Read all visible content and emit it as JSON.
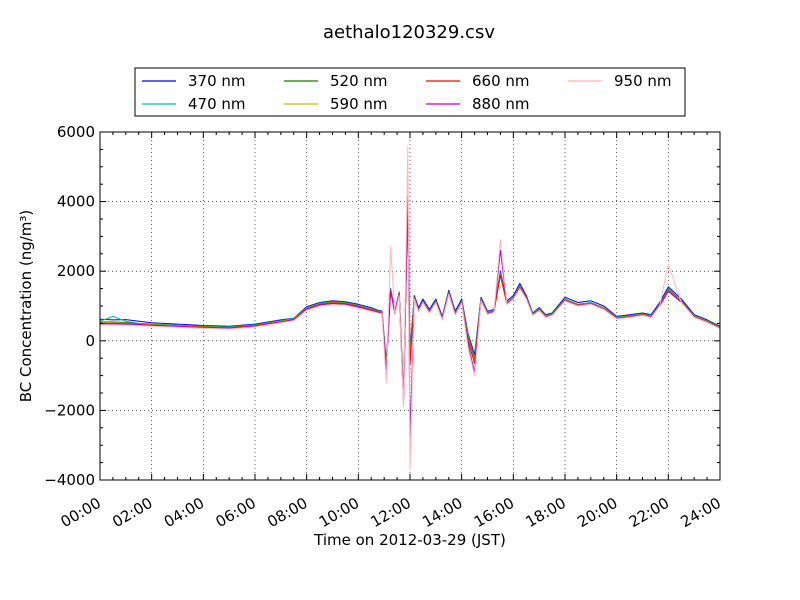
{
  "chart_data": {
    "type": "line",
    "title": "aethalo120329.csv",
    "xlabel": "Time on 2012-03-29 (JST)",
    "ylabel": "BC Concentration (ng/m³)",
    "ylim": [
      -4000,
      6000
    ],
    "xlim_hours": [
      0,
      24
    ],
    "x_tick_labels": [
      "00:00",
      "02:00",
      "04:00",
      "06:00",
      "08:00",
      "10:00",
      "12:00",
      "14:00",
      "16:00",
      "18:00",
      "20:00",
      "22:00",
      "24:00"
    ],
    "y_tick_labels": [
      "−4000",
      "−2000",
      "0",
      "2000",
      "4000",
      "6000"
    ],
    "grid": true,
    "legend_position": "top-center",
    "x": [
      "00:00",
      "00:30",
      "01:00",
      "01:30",
      "02:00",
      "03:00",
      "04:00",
      "05:00",
      "06:00",
      "07:00",
      "07:30",
      "08:00",
      "08:30",
      "09:00",
      "09:30",
      "10:00",
      "10:30",
      "10:45",
      "10:55",
      "11:05",
      "11:15",
      "11:25",
      "11:35",
      "11:45",
      "11:55",
      "12:00",
      "12:10",
      "12:20",
      "12:30",
      "12:45",
      "13:00",
      "13:15",
      "13:30",
      "13:45",
      "14:00",
      "14:15",
      "14:30",
      "14:45",
      "15:00",
      "15:15",
      "15:30",
      "15:45",
      "16:00",
      "16:15",
      "16:30",
      "16:45",
      "17:00",
      "17:15",
      "17:30",
      "18:00",
      "18:30",
      "19:00",
      "19:30",
      "20:00",
      "20:30",
      "21:00",
      "21:20",
      "21:40",
      "22:00",
      "22:30",
      "23:00",
      "23:30",
      "24:00"
    ],
    "series": [
      {
        "name": "370 nm",
        "color": "#0000ff",
        "values": [
          620,
          600,
          610,
          560,
          520,
          480,
          440,
          420,
          480,
          600,
          650,
          980,
          1100,
          1150,
          1120,
          1050,
          950,
          880,
          850,
          -600,
          1500,
          850,
          1400,
          -1500,
          3900,
          -300,
          1300,
          950,
          1200,
          900,
          1200,
          700,
          1450,
          850,
          1200,
          200,
          -400,
          1250,
          850,
          900,
          2000,
          1150,
          1300,
          1650,
          1300,
          800,
          950,
          750,
          800,
          1250,
          1100,
          1150,
          1000,
          700,
          750,
          800,
          750,
          1100,
          1550,
          1200,
          750,
          600,
          420
        ]
      },
      {
        "name": "470 nm",
        "color": "#00bfbf",
        "values": [
          560,
          700,
          560,
          500,
          480,
          450,
          420,
          400,
          460,
          580,
          640,
          950,
          1080,
          1120,
          1100,
          1020,
          920,
          860,
          830,
          -650,
          1480,
          820,
          1380,
          -1600,
          3950,
          -400,
          1250,
          900,
          1150,
          850,
          1150,
          650,
          1400,
          800,
          1150,
          150,
          -500,
          1200,
          820,
          880,
          1950,
          1100,
          1250,
          1600,
          1250,
          780,
          920,
          720,
          780,
          1200,
          1050,
          1100,
          950,
          680,
          720,
          780,
          720,
          1050,
          1500,
          1150,
          720,
          580,
          400
        ]
      },
      {
        "name": "520 nm",
        "color": "#008000",
        "values": [
          540,
          540,
          530,
          490,
          470,
          440,
          410,
          390,
          450,
          570,
          630,
          940,
          1070,
          1110,
          1090,
          1010,
          910,
          850,
          820,
          -700,
          1470,
          800,
          1370,
          -1650,
          4000,
          -500,
          1240,
          880,
          1140,
          840,
          1140,
          640,
          1380,
          780,
          1140,
          100,
          -550,
          1190,
          800,
          860,
          1920,
          1080,
          1240,
          1580,
          1240,
          770,
          910,
          710,
          770,
          1180,
          1040,
          1090,
          940,
          670,
          710,
          770,
          710,
          1040,
          1480,
          1140,
          710,
          570,
          390
        ]
      },
      {
        "name": "590 nm",
        "color": "#bfbf00",
        "values": [
          520,
          520,
          510,
          480,
          460,
          430,
          400,
          380,
          440,
          560,
          620,
          930,
          1060,
          1100,
          1080,
          1000,
          900,
          840,
          810,
          -750,
          1460,
          790,
          1360,
          -1700,
          4050,
          -600,
          1230,
          870,
          1130,
          830,
          1130,
          630,
          1370,
          770,
          1130,
          50,
          -600,
          1180,
          790,
          850,
          1900,
          1070,
          1230,
          1560,
          1230,
          760,
          900,
          700,
          760,
          1170,
          1030,
          1080,
          930,
          660,
          700,
          760,
          700,
          1030,
          1460,
          1130,
          700,
          560,
          380
        ]
      },
      {
        "name": "660 nm",
        "color": "#ff0000",
        "values": [
          500,
          500,
          490,
          470,
          450,
          420,
          390,
          370,
          430,
          550,
          610,
          920,
          1050,
          1090,
          1070,
          990,
          890,
          830,
          800,
          -800,
          1450,
          780,
          1350,
          -1750,
          4100,
          -700,
          1220,
          860,
          1120,
          820,
          1120,
          620,
          1360,
          760,
          1120,
          0,
          -650,
          1170,
          780,
          840,
          1880,
          1060,
          1220,
          1540,
          1220,
          750,
          890,
          690,
          750,
          1160,
          1020,
          1070,
          920,
          650,
          690,
          750,
          690,
          1020,
          1440,
          1120,
          690,
          550,
          370
        ]
      },
      {
        "name": "880 nm",
        "color": "#bf00bf",
        "values": [
          480,
          480,
          470,
          460,
          440,
          410,
          380,
          360,
          420,
          540,
          600,
          900,
          1030,
          1070,
          1050,
          970,
          870,
          820,
          790,
          -850,
          1440,
          770,
          1340,
          -1800,
          4150,
          -2800,
          1210,
          850,
          1110,
          810,
          1110,
          610,
          1350,
          750,
          1100,
          -100,
          -900,
          1160,
          770,
          830,
          2600,
          1050,
          1210,
          1520,
          1210,
          740,
          880,
          680,
          740,
          1150,
          1010,
          1060,
          910,
          640,
          680,
          740,
          680,
          1010,
          1420,
          1110,
          680,
          540,
          360
        ]
      },
      {
        "name": "950 nm",
        "color": "#ffb6c1",
        "values": [
          460,
          460,
          450,
          440,
          420,
          390,
          360,
          340,
          400,
          520,
          580,
          880,
          1000,
          1040,
          1020,
          940,
          850,
          800,
          780,
          -1200,
          2700,
          760,
          1300,
          -1900,
          5600,
          -3700,
          1200,
          840,
          1100,
          800,
          1100,
          600,
          1340,
          740,
          1090,
          -200,
          -1000,
          1150,
          760,
          820,
          2900,
          1040,
          1200,
          1500,
          1200,
          730,
          870,
          670,
          730,
          1140,
          1000,
          1050,
          900,
          630,
          670,
          730,
          670,
          1000,
          2200,
          1100,
          670,
          530,
          350
        ]
      }
    ]
  }
}
